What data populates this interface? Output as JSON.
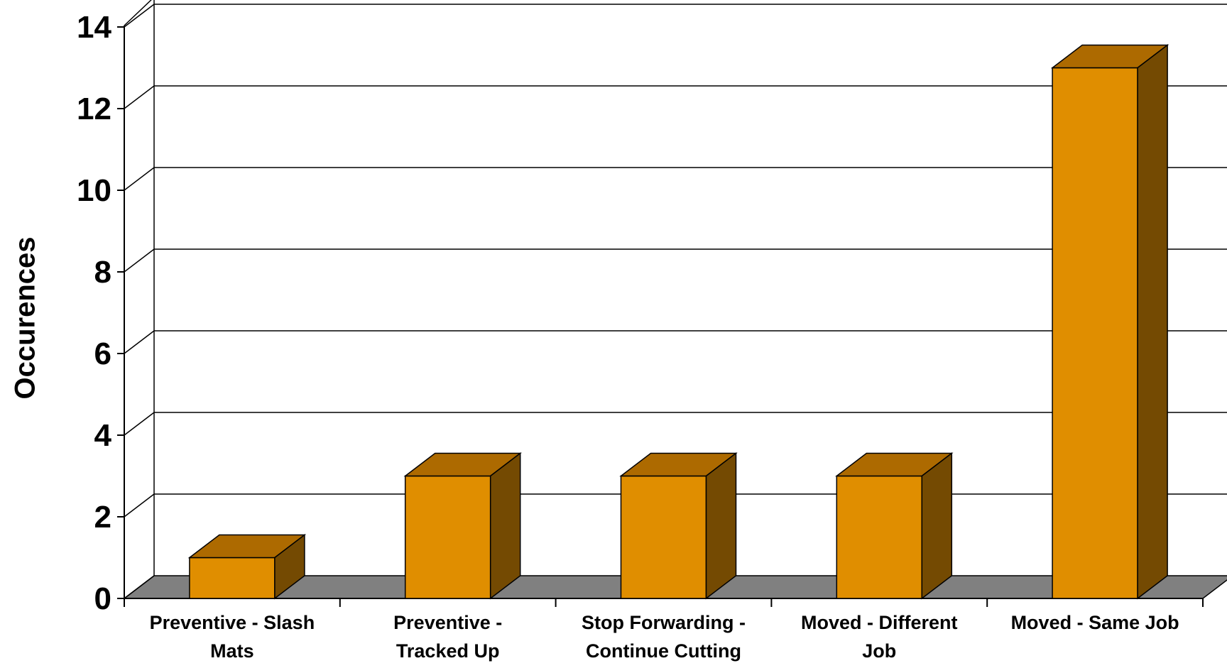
{
  "chart_data": {
    "type": "bar",
    "style": "3d",
    "title": "",
    "xlabel": "",
    "ylabel": "Occurences",
    "ylim": [
      0,
      14
    ],
    "yticks": [
      "0",
      "2",
      "4",
      "6",
      "8",
      "10",
      "12",
      "14"
    ],
    "grid": true,
    "categories": [
      [
        "Preventive - Slash",
        "Mats"
      ],
      [
        "Preventive -",
        "Tracked Up"
      ],
      [
        "Stop Forwarding -",
        "Continue Cutting"
      ],
      [
        "Moved - Different",
        "Job"
      ],
      [
        "Moved - Same Job"
      ]
    ],
    "values": [
      1,
      3,
      3,
      3,
      13
    ],
    "colors": {
      "bar_front": "#E08E00",
      "bar_top": "#AD6A00",
      "bar_side": "#744A02",
      "floor": "#808080",
      "grid": "#000000"
    }
  }
}
